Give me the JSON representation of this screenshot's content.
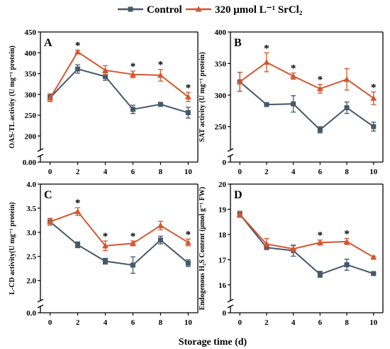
{
  "legend": {
    "entries": [
      {
        "name": "Control",
        "color": "#44586b",
        "marker": "square"
      },
      {
        "name": "320 μmol L⁻¹ SrCl₂",
        "color": "#d4562e",
        "marker": "triangle"
      }
    ]
  },
  "shared_xlabel": "Storage time (d)",
  "chart_data": [
    {
      "panel": "A",
      "type": "line",
      "ylabel": "OAS-TL activity (U mg⁻¹ protein)",
      "x": [
        0,
        2,
        4,
        6,
        8,
        10
      ],
      "xticks": [
        "0",
        "2",
        "4",
        "6",
        "8",
        "10"
      ],
      "ylim": [
        180,
        450
      ],
      "yticks": [
        "200",
        "250",
        "300",
        "350",
        "400",
        "450"
      ],
      "axis_break": true,
      "zero_label": "0.00",
      "series": [
        {
          "name": "Control",
          "values": [
            292,
            361,
            343,
            264,
            276,
            256
          ],
          "errors": [
            9,
            10,
            9,
            10,
            3,
            13
          ]
        },
        {
          "name": "320 μmol L⁻¹ SrCl₂",
          "values": [
            291,
            402,
            358,
            348,
            346,
            294
          ],
          "errors": [
            8,
            4,
            11,
            8,
            14,
            11
          ]
        }
      ],
      "significance": [
        "",
        "*",
        "",
        "*",
        "*",
        "*"
      ]
    },
    {
      "panel": "B",
      "type": "line",
      "ylabel": "SAT activity (U mg⁻¹ protein)",
      "x": [
        0,
        2,
        4,
        6,
        8,
        10
      ],
      "xticks": [
        "0",
        "2",
        "4",
        "6",
        "8",
        "10"
      ],
      "ylim": [
        222,
        400
      ],
      "yticks": [
        "250",
        "300",
        "350",
        "400"
      ],
      "axis_break": true,
      "zero_label": "0",
      "series": [
        {
          "name": "Control",
          "values": [
            321,
            285,
            286,
            245,
            280,
            250
          ],
          "errors": [
            15,
            2,
            13,
            5,
            9,
            7
          ]
        },
        {
          "name": "320 μmol L⁻¹ SrCl₂",
          "values": [
            321,
            352,
            330,
            310,
            325,
            295
          ],
          "errors": [
            15,
            15,
            5,
            7,
            17,
            10
          ]
        }
      ],
      "significance": [
        "",
        "*",
        "*",
        "*",
        "",
        "*"
      ]
    },
    {
      "panel": "C",
      "type": "line",
      "ylabel": "L-CD activity(U mg⁻¹ protein)",
      "x": [
        0,
        2,
        4,
        6,
        8,
        10
      ],
      "xticks": [
        "0",
        "2",
        "4",
        "6",
        "8",
        "10"
      ],
      "ylim": [
        1.7,
        4.0
      ],
      "yticks": [
        "2.0",
        "2.5",
        "3.0",
        "3.5",
        "4.0"
      ],
      "axis_break": true,
      "zero_label": "0.0",
      "series": [
        {
          "name": "Control",
          "values": [
            3.22,
            2.74,
            2.4,
            2.32,
            2.84,
            2.36
          ],
          "errors": [
            0.07,
            0.06,
            0.06,
            0.17,
            0.08,
            0.07
          ]
        },
        {
          "name": "320 μmol L⁻¹ SrCl₂",
          "values": [
            3.22,
            3.43,
            2.72,
            2.77,
            3.14,
            2.79
          ],
          "errors": [
            0.07,
            0.08,
            0.1,
            0.05,
            0.09,
            0.07
          ]
        }
      ],
      "significance": [
        "",
        "*",
        "*",
        "*",
        "",
        "*"
      ]
    },
    {
      "panel": "D",
      "type": "line",
      "ylabel": "Endogenous H₂S Content (μmol g⁻¹ FW)",
      "x": [
        0,
        2,
        4,
        6,
        8,
        10
      ],
      "xticks": [
        "0",
        "2",
        "4",
        "6",
        "8",
        "10"
      ],
      "ylim": [
        15.6,
        20
      ],
      "yticks": [
        "16",
        "17",
        "18",
        "19",
        "20"
      ],
      "axis_break": true,
      "zero_label": "0",
      "series": [
        {
          "name": "Control",
          "values": [
            18.8,
            17.48,
            17.36,
            16.42,
            16.8,
            16.45
          ],
          "errors": [
            0.12,
            0.08,
            0.22,
            0.12,
            0.22,
            0.04
          ]
        },
        {
          "name": "320 μmol L⁻¹ SrCl₂",
          "values": [
            18.8,
            17.62,
            17.43,
            17.68,
            17.72,
            17.1
          ],
          "errors": [
            0.12,
            0.22,
            0.12,
            0.1,
            0.12,
            0.04
          ]
        }
      ],
      "significance": [
        "",
        "",
        "",
        "*",
        "*",
        ""
      ]
    }
  ]
}
